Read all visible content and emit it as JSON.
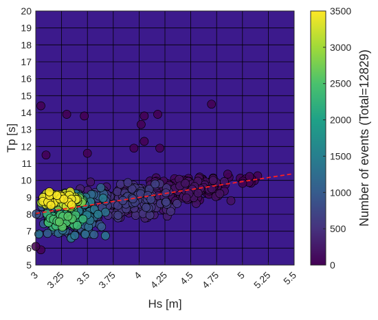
{
  "chart_data": {
    "type": "scatter",
    "title": "",
    "xlabel": "Hs [m]",
    "ylabel": "Tp [s]",
    "xlim": [
      3,
      5.5
    ],
    "ylim": [
      5,
      20
    ],
    "xticks": [
      3,
      3.25,
      3.5,
      3.75,
      4,
      4.25,
      4.5,
      4.75,
      5,
      5.25,
      5.5
    ],
    "xtick_labels": [
      "3",
      "3.25",
      "3.5",
      "3.75",
      "4",
      "4.25",
      "4.5",
      "4.75",
      "5",
      "5.25",
      "5.5"
    ],
    "yticks": [
      5,
      6,
      7,
      8,
      9,
      10,
      11,
      12,
      13,
      14,
      15,
      16,
      17,
      18,
      19,
      20
    ],
    "ytick_labels": [
      "5",
      "6",
      "7",
      "8",
      "9",
      "10",
      "11",
      "12",
      "13",
      "14",
      "15",
      "16",
      "17",
      "18",
      "19",
      "20"
    ],
    "grid": true,
    "background_color": "#3c1a8c",
    "grid_color": "#000000",
    "marker_edge_color": "#000000",
    "trend_color": "#ff2020",
    "trend_line": {
      "style": "dashed",
      "points": [
        [
          3,
          8.05
        ],
        [
          5.5,
          10.4
        ]
      ]
    },
    "colorbar": {
      "label": "Number of events (Total=12829)",
      "range": [
        0,
        3500
      ],
      "ticks": [
        0,
        500,
        1000,
        1500,
        2000,
        2500,
        3000,
        3500
      ],
      "tick_labels": [
        "0",
        "500",
        "1000",
        "1500",
        "2000",
        "2500",
        "3000",
        "3500"
      ],
      "colormap": "viridis",
      "colors": [
        "#440154",
        "#46327e",
        "#365c8d",
        "#277f8e",
        "#1fa187",
        "#4ac16d",
        "#a0da39",
        "#fde725"
      ]
    },
    "point_clusters": [
      {
        "hs_range": [
          3.0,
          3.45
        ],
        "tp_range": [
          8.4,
          9.4
        ],
        "count_range": [
          3000,
          3500
        ],
        "n": 70
      },
      {
        "hs_range": [
          3.1,
          3.5
        ],
        "tp_range": [
          7.1,
          8.1
        ],
        "count_range": [
          2000,
          2600
        ],
        "n": 55
      },
      {
        "hs_range": [
          3.2,
          3.5
        ],
        "tp_range": [
          8.2,
          9.2
        ],
        "count_range": [
          2200,
          2900
        ],
        "n": 35
      },
      {
        "hs_range": [
          3.0,
          3.7
        ],
        "tp_range": [
          6.4,
          9.8
        ],
        "count_range": [
          700,
          1500
        ],
        "n": 220
      },
      {
        "hs_range": [
          3.4,
          4.4
        ],
        "tp_range": [
          7.6,
          10.0
        ],
        "count_range": [
          150,
          700
        ],
        "n": 240
      },
      {
        "hs_range": [
          4.0,
          4.9
        ],
        "tp_range": [
          8.6,
          10.3
        ],
        "count_range": [
          20,
          200
        ],
        "n": 160
      },
      {
        "hs_range": [
          4.8,
          5.25
        ],
        "tp_range": [
          9.6,
          10.6
        ],
        "count_range": [
          0,
          40
        ],
        "n": 12
      }
    ],
    "outliers": [
      {
        "x": 3.05,
        "y": 14.4
      },
      {
        "x": 3.3,
        "y": 13.9
      },
      {
        "x": 3.47,
        "y": 13.8
      },
      {
        "x": 3.5,
        "y": 11.6
      },
      {
        "x": 3.1,
        "y": 11.5
      },
      {
        "x": 3.95,
        "y": 11.9
      },
      {
        "x": 4.02,
        "y": 13.3
      },
      {
        "x": 4.05,
        "y": 13.8
      },
      {
        "x": 4.18,
        "y": 13.9
      },
      {
        "x": 4.05,
        "y": 12.3
      },
      {
        "x": 4.2,
        "y": 11.9
      },
      {
        "x": 4.7,
        "y": 14.5
      },
      {
        "x": 3.05,
        "y": 5.9
      },
      {
        "x": 3.0,
        "y": 6.1
      }
    ]
  }
}
